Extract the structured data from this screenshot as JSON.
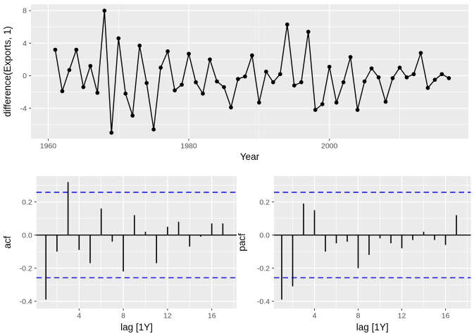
{
  "figure": {
    "background": "#ffffff",
    "panel_bg": "#ebebeb",
    "grid_color": "#ffffff",
    "tick_color": "#333333",
    "tick_label_color": "#4d4d4d",
    "series_color": "#000000",
    "conf_color": "#2a2ae6"
  },
  "chart_data": [
    {
      "id": "diff-exports-timeseries",
      "type": "line",
      "title": "",
      "xlabel": "Year",
      "ylabel": "difference(Exports, 1)",
      "x": [
        1961,
        1962,
        1963,
        1964,
        1965,
        1966,
        1967,
        1968,
        1969,
        1970,
        1971,
        1972,
        1973,
        1974,
        1975,
        1976,
        1977,
        1978,
        1979,
        1980,
        1981,
        1982,
        1983,
        1984,
        1985,
        1986,
        1987,
        1988,
        1989,
        1990,
        1991,
        1992,
        1993,
        1994,
        1995,
        1996,
        1997,
        1998,
        1999,
        2000,
        2001,
        2002,
        2003,
        2004,
        2005,
        2006,
        2007,
        2008,
        2009,
        2010,
        2011,
        2012,
        2013,
        2014,
        2015,
        2016,
        2017
      ],
      "y": [
        3.2,
        -1.9,
        0.7,
        3.2,
        -1.4,
        1.2,
        -2.1,
        8.0,
        -7.0,
        4.6,
        -2.2,
        -4.9,
        3.7,
        -0.9,
        -6.6,
        1.0,
        3.0,
        -1.8,
        -1.1,
        2.7,
        -0.8,
        -2.2,
        2.0,
        -0.7,
        -1.4,
        -3.9,
        -0.4,
        -0.1,
        2.5,
        -3.3,
        0.5,
        -0.8,
        0.2,
        6.3,
        -1.2,
        -0.8,
        5.4,
        -4.2,
        -3.5,
        1.1,
        -3.3,
        -0.8,
        2.3,
        -4.2,
        -0.7,
        0.9,
        -0.2,
        -3.2,
        -0.3,
        1.0,
        -0.2,
        0.2,
        2.8,
        -1.5,
        -0.5,
        0.2,
        -0.3
      ],
      "xlim": [
        1957.55,
        2019.77
      ],
      "ylim": [
        -7.75,
        8.79
      ],
      "xticks": [
        1960,
        1980,
        2000
      ],
      "xtick_labels": [
        "1960",
        "1980",
        "2000"
      ],
      "yticks": [
        8,
        4,
        0,
        -4
      ],
      "ytick_labels": [
        "8",
        "4",
        "0",
        "-4"
      ],
      "x_minor": [
        1970,
        1990,
        2010
      ],
      "y_minor": [
        6,
        2,
        -2,
        -6
      ],
      "grid": true,
      "legend": "none"
    },
    {
      "id": "acf",
      "type": "bar",
      "title": "",
      "xlabel": "lag [1Y]",
      "ylabel": "acf",
      "lags": [
        1,
        2,
        3,
        4,
        5,
        6,
        7,
        8,
        9,
        10,
        11,
        12,
        13,
        14,
        15,
        16,
        17
      ],
      "values": [
        -0.39,
        -0.1,
        0.32,
        -0.09,
        -0.17,
        0.16,
        -0.04,
        -0.22,
        0.12,
        0.02,
        -0.17,
        0.05,
        0.08,
        -0.07,
        -0.01,
        0.07,
        0.07
      ],
      "conf_band": 0.258,
      "xlim": [
        0.14,
        18.25
      ],
      "ylim": [
        -0.444,
        0.356
      ],
      "xticks": [
        4,
        8,
        12,
        16
      ],
      "xtick_labels": [
        "4",
        "8",
        "12",
        "16"
      ],
      "yticks": [
        0.2,
        0.0,
        -0.2,
        -0.4
      ],
      "ytick_labels": [
        "0.2",
        "0.0",
        "-0.2",
        "-0.4"
      ],
      "x_minor": [
        2,
        6,
        10,
        14,
        18
      ],
      "y_minor": [
        0.3,
        0.1,
        -0.1,
        -0.3
      ],
      "grid": true,
      "legend": "none"
    },
    {
      "id": "pacf",
      "type": "bar",
      "title": "",
      "xlabel": "lag [1Y]",
      "ylabel": "pacf",
      "lags": [
        1,
        2,
        3,
        4,
        5,
        6,
        7,
        8,
        9,
        10,
        11,
        12,
        13,
        14,
        15,
        16,
        17
      ],
      "values": [
        -0.39,
        -0.31,
        0.19,
        0.15,
        -0.1,
        -0.05,
        -0.04,
        -0.2,
        -0.12,
        -0.02,
        -0.05,
        -0.08,
        -0.03,
        0.02,
        -0.03,
        -0.06,
        0.12
      ],
      "conf_band": 0.258,
      "xlim": [
        0.29,
        18.32
      ],
      "ylim": [
        -0.444,
        0.356
      ],
      "xticks": [
        4,
        8,
        12,
        16
      ],
      "xtick_labels": [
        "4",
        "8",
        "12",
        "16"
      ],
      "yticks": [
        0.2,
        0.0,
        -0.2,
        -0.4
      ],
      "ytick_labels": [
        "0.2",
        "0.0",
        "-0.2",
        "-0.4"
      ],
      "x_minor": [
        2,
        6,
        10,
        14,
        18
      ],
      "y_minor": [
        0.3,
        0.1,
        -0.1,
        -0.3
      ],
      "grid": true,
      "legend": "none"
    }
  ]
}
